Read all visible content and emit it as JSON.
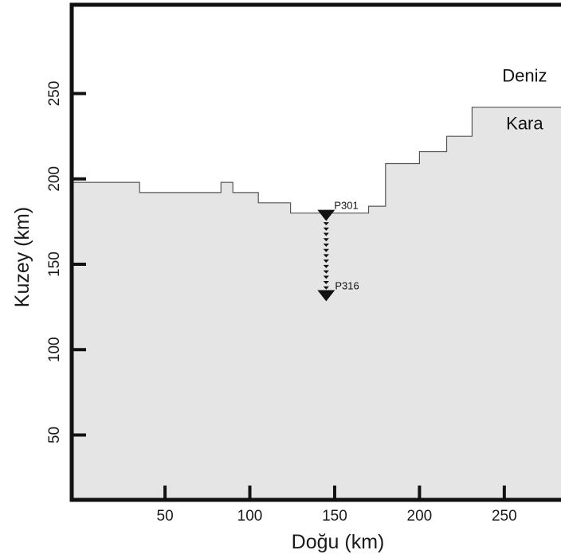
{
  "chart_data": {
    "type": "area",
    "xlabel": "Doğu (km)",
    "ylabel": "Kuzey (km)",
    "xlim": [
      -5,
      290
    ],
    "ylim": [
      12,
      302
    ],
    "xticks": [
      50,
      100,
      150,
      200,
      250
    ],
    "yticks": [
      50,
      100,
      150,
      200,
      250
    ],
    "coastline": [
      [
        -5,
        198
      ],
      [
        35,
        198
      ],
      [
        35,
        192
      ],
      [
        83,
        192
      ],
      [
        83,
        198
      ],
      [
        90,
        198
      ],
      [
        90,
        192
      ],
      [
        105,
        192
      ],
      [
        105,
        186
      ],
      [
        124,
        186
      ],
      [
        124,
        180
      ],
      [
        170,
        180
      ],
      [
        170,
        184
      ],
      [
        180,
        184
      ],
      [
        180,
        209
      ],
      [
        200,
        209
      ],
      [
        200,
        216
      ],
      [
        216,
        216
      ],
      [
        216,
        225
      ],
      [
        231,
        225
      ],
      [
        231,
        242
      ],
      [
        290,
        242
      ]
    ],
    "regions": [
      {
        "label": "Deniz",
        "x": 262,
        "y": 257
      },
      {
        "label": "Kara",
        "x": 262,
        "y": 229
      }
    ],
    "stations": {
      "x": 145,
      "y_start": 180,
      "y_end": 133,
      "count": 16,
      "first_label": "P301",
      "last_label": "P316"
    },
    "colors": {
      "land": "#e5e5e5",
      "sea": "#ffffff",
      "frame": "#111111",
      "coastline": "#555555"
    }
  }
}
